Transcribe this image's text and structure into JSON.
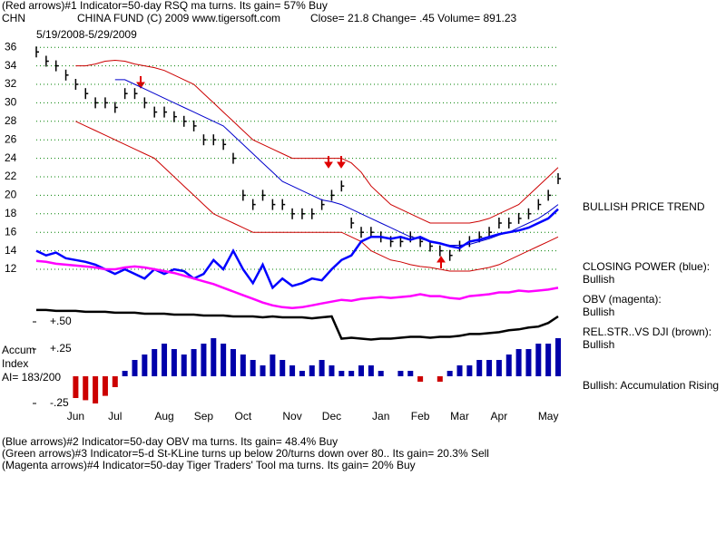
{
  "header": {
    "line1": "(Red arrows)#1 Indicator=50-day RSQ ma turns. Its gain= 57% Buy",
    "symbol": "CHN",
    "fund": "CHINA FUND  (C) 2009 www.tigersoft.com",
    "quote": "Close=  21.8  Change= .45 Volume= 891.23",
    "date_range": "5/19/2008-5/29/2009"
  },
  "chart_data": [
    {
      "type": "line",
      "grid": true,
      "categories": [
        null,
        null,
        null,
        null,
        "Jun",
        null,
        null,
        null,
        "Jul",
        null,
        null,
        null,
        null,
        "Aug",
        null,
        null,
        null,
        "Sep",
        null,
        null,
        null,
        "Oct",
        null,
        null,
        null,
        null,
        "Nov",
        null,
        null,
        null,
        "Dec",
        null,
        null,
        null,
        null,
        "Jan",
        null,
        null,
        null,
        "Feb",
        null,
        null,
        null,
        "Mar",
        null,
        null,
        null,
        "Apr",
        null,
        null,
        null,
        null,
        "May",
        null
      ],
      "ylim": [
        4,
        37
      ],
      "yticks": [
        12,
        14,
        16,
        18,
        20,
        22,
        24,
        26,
        28,
        30,
        32,
        34,
        36
      ],
      "series": [
        {
          "style": "bars",
          "color": "#000000",
          "values": [
            35.5,
            34.5,
            34,
            33,
            32,
            31,
            30,
            30,
            29.5,
            31,
            31,
            30,
            29,
            29,
            28.5,
            28,
            27.5,
            26,
            26,
            25.5,
            24,
            20,
            19,
            20,
            19,
            19,
            18,
            18,
            18,
            19,
            20,
            21,
            17,
            16,
            16,
            15.5,
            15,
            15,
            15.5,
            15,
            14.5,
            14,
            13.5,
            14.5,
            15,
            15.5,
            16,
            17,
            17,
            17.5,
            18,
            19,
            20,
            21.8
          ]
        },
        {
          "style": "line",
          "width": 1,
          "color": "#cc0000",
          "values": [
            null,
            null,
            null,
            null,
            34,
            34,
            34.2,
            34.5,
            34.6,
            34.5,
            34.2,
            34,
            33.8,
            33.5,
            33,
            32.5,
            32,
            31,
            30,
            29,
            28,
            27,
            26,
            25.5,
            25,
            24.5,
            24,
            24,
            24,
            24,
            24,
            24,
            23.5,
            22.5,
            21,
            20,
            19,
            18.5,
            18,
            17.5,
            17,
            17,
            17,
            17,
            17,
            17.2,
            17.5,
            18,
            18.5,
            19,
            20,
            21,
            22,
            23
          ]
        },
        {
          "style": "line",
          "width": 1,
          "color": "#cc0000",
          "values": [
            null,
            null,
            null,
            null,
            28,
            27.5,
            27,
            26.5,
            26,
            25.5,
            25,
            24.5,
            24,
            23,
            22,
            21,
            20,
            19,
            18,
            17.5,
            17,
            16.5,
            16,
            16,
            16,
            16,
            16,
            16,
            16,
            16,
            16,
            16,
            15.5,
            15,
            14,
            13.5,
            13,
            12.8,
            12.5,
            12.3,
            12.2,
            12,
            11.8,
            11.8,
            11.8,
            12,
            12.2,
            12.5,
            13,
            13.5,
            14,
            14.5,
            15,
            15.5
          ]
        },
        {
          "style": "line",
          "width": 1,
          "color": "#0000cc",
          "values": [
            null,
            null,
            null,
            null,
            null,
            null,
            null,
            null,
            32.5,
            32.5,
            32,
            31.5,
            31,
            30.5,
            30,
            29.5,
            29,
            28.5,
            28,
            27.5,
            26.5,
            25.5,
            24.5,
            23.5,
            22.5,
            21.5,
            21,
            20.5,
            20,
            19.5,
            19.3,
            19,
            18.5,
            18,
            17.5,
            17,
            16.5,
            16,
            15.5,
            15.3,
            15,
            14.8,
            14.6,
            14.6,
            14.7,
            15,
            15.3,
            15.7,
            16,
            16.5,
            17,
            17.5,
            18.2,
            19
          ]
        },
        {
          "style": "line",
          "width": 2.5,
          "color": "#0000ff",
          "values": [
            14,
            13.5,
            13.8,
            13.2,
            13,
            12.8,
            12.5,
            12,
            11.5,
            12,
            11.5,
            11,
            12,
            11.5,
            12,
            11.8,
            11,
            11.5,
            13,
            12,
            14,
            12,
            10.5,
            12.5,
            10,
            11,
            10.2,
            10.5,
            11,
            10.8,
            12,
            13,
            13.5,
            15,
            15.5,
            15.5,
            15.3,
            15.5,
            15.2,
            15.5,
            15,
            14.8,
            14.5,
            14.3,
            15,
            15.2,
            15.5,
            15.8,
            16,
            16.2,
            16.5,
            17,
            17.5,
            18.5
          ]
        },
        {
          "style": "line",
          "width": 2.5,
          "color": "#ff00ff",
          "values": [
            12.9,
            12.8,
            12.6,
            12.5,
            12.4,
            12.3,
            12.2,
            12,
            12,
            12.2,
            12.3,
            12.2,
            12,
            11.8,
            11.6,
            11.3,
            11,
            10.7,
            10.4,
            10,
            9.6,
            9.2,
            8.8,
            8.4,
            8.1,
            7.9,
            7.8,
            7.9,
            8.1,
            8.3,
            8.5,
            8.7,
            8.6,
            8.8,
            8.9,
            9,
            8.9,
            9,
            9.1,
            9.3,
            9.1,
            9.1,
            8.9,
            8.8,
            9.1,
            9.2,
            9.3,
            9.5,
            9.5,
            9.7,
            9.6,
            9.7,
            9.8,
            10
          ]
        },
        {
          "style": "line",
          "width": 2.5,
          "color": "#000000",
          "values": [
            7.6,
            7.6,
            7.5,
            7.5,
            7.5,
            7.4,
            7.4,
            7.4,
            7.3,
            7.3,
            7.3,
            7.2,
            7.2,
            7.2,
            7.1,
            7.1,
            7.1,
            7,
            7,
            7,
            6.9,
            6.9,
            6.9,
            6.8,
            6.9,
            6.8,
            6.8,
            6.8,
            6.7,
            6.8,
            6.9,
            4.5,
            4.6,
            4.5,
            4.4,
            4.5,
            4.5,
            4.6,
            4.7,
            4.7,
            4.6,
            4.7,
            4.7,
            4.8,
            5,
            5,
            5.1,
            5.2,
            5.4,
            5.5,
            5.7,
            5.8,
            6.2,
            6.9
          ]
        }
      ]
    },
    {
      "type": "bar",
      "ylim": [
        -0.3,
        0.6
      ],
      "yticks": [
        {
          "value": 0.5,
          "label": "+.50"
        },
        {
          "value": 0.25,
          "label": "+.25"
        },
        {
          "value": -0.25,
          "label": "-.25"
        }
      ],
      "colors": {
        "positive": "#0000aa",
        "negative": "#cc0000"
      },
      "values": [
        0,
        0,
        0,
        0,
        -0.2,
        -0.22,
        -0.25,
        -0.18,
        -0.1,
        0.05,
        0.15,
        0.2,
        0.25,
        0.3,
        0.25,
        0.2,
        0.25,
        0.3,
        0.35,
        0.3,
        0.25,
        0.2,
        0.15,
        0.1,
        0.2,
        0.15,
        0.1,
        0.05,
        0.1,
        0.15,
        0.1,
        0.05,
        0.05,
        0.1,
        0.1,
        0.05,
        0,
        0.05,
        0.05,
        -0.05,
        0,
        -0.05,
        0.05,
        0.1,
        0.1,
        0.15,
        0.15,
        0.15,
        0.2,
        0.25,
        0.25,
        0.3,
        0.3,
        0.35
      ]
    }
  ],
  "side_labels": [
    "BULLISH PRICE TREND",
    "CLOSING POWER (blue):",
    "Bullish",
    "OBV (magenta):",
    "Bullish",
    "REL.STR..VS DJI (brown):",
    "Bullish",
    "Bullish: Accumulation Rising"
  ],
  "accum_label": [
    "Accum",
    "Index",
    "AI= 183/200"
  ],
  "footer": [
    "(Blue arrows)#2 Indicator=50-day OBV ma turns. Its gain= 48.4% Buy",
    "(Green arrows)#3 Indicator=5-d St-KLine turns up below 20/turns down over 80.. Its gain= 20.3% Sell",
    "(Magenta arrows)#4 Indicator=50-day Tiger Traders' Tool ma turns. Its gain= 20% Buy"
  ]
}
